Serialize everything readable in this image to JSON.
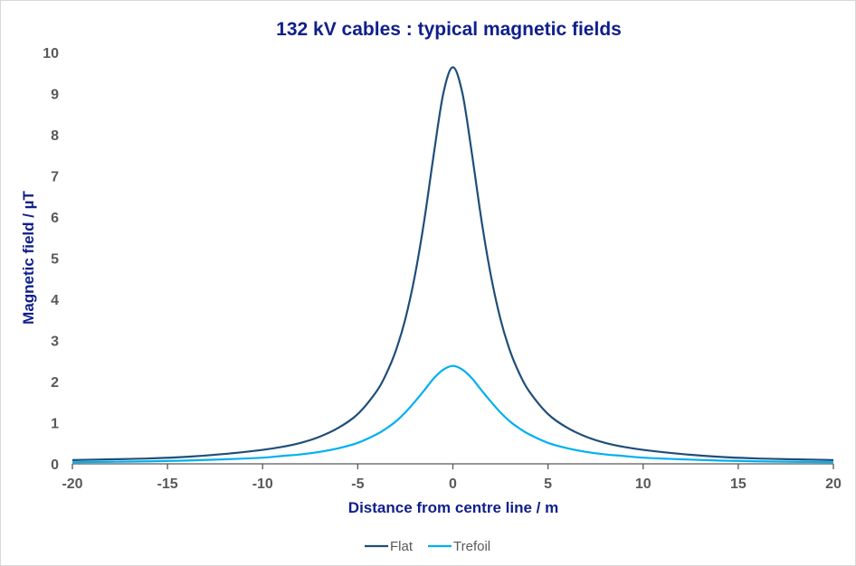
{
  "chart_data": {
    "type": "line",
    "title": "132 kV cables : typical magnetic fields",
    "xlabel": "Distance from centre line / m",
    "ylabel": "Magnetic field / µT",
    "xlim": [
      -20,
      20
    ],
    "ylim": [
      0,
      10
    ],
    "xticks": [
      -20,
      -15,
      -10,
      -5,
      0,
      5,
      10,
      15,
      20
    ],
    "yticks": [
      0,
      1,
      2,
      3,
      4,
      5,
      6,
      7,
      8,
      9,
      10
    ],
    "grid": false,
    "legend": "bottom",
    "x": [
      -20,
      -18,
      -16,
      -14,
      -12,
      -10,
      -9,
      -8,
      -7,
      -6,
      -5,
      -4,
      -3.5,
      -3,
      -2.5,
      -2,
      -1.5,
      -1,
      -0.5,
      0,
      0.5,
      1,
      1.5,
      2,
      2.5,
      3,
      3.5,
      4,
      5,
      6,
      7,
      8,
      9,
      10,
      12,
      14,
      16,
      18,
      20
    ],
    "series": [
      {
        "name": "Flat",
        "color": "#1f4e79",
        "values": [
          0.09,
          0.11,
          0.13,
          0.17,
          0.24,
          0.34,
          0.41,
          0.51,
          0.66,
          0.88,
          1.21,
          1.77,
          2.19,
          2.75,
          3.52,
          4.57,
          5.93,
          7.54,
          9.01,
          9.64,
          9.01,
          7.54,
          5.93,
          4.57,
          3.52,
          2.75,
          2.19,
          1.77,
          1.21,
          0.88,
          0.66,
          0.51,
          0.41,
          0.34,
          0.24,
          0.17,
          0.13,
          0.11,
          0.09
        ]
      },
      {
        "name": "Trefoil",
        "color": "#00b0f0",
        "values": [
          0.04,
          0.05,
          0.06,
          0.08,
          0.11,
          0.15,
          0.19,
          0.23,
          0.29,
          0.38,
          0.51,
          0.72,
          0.86,
          1.03,
          1.25,
          1.51,
          1.79,
          2.08,
          2.29,
          2.38,
          2.29,
          2.08,
          1.79,
          1.51,
          1.25,
          1.03,
          0.86,
          0.72,
          0.51,
          0.38,
          0.29,
          0.23,
          0.19,
          0.15,
          0.11,
          0.08,
          0.06,
          0.05,
          0.04
        ]
      }
    ],
    "colors": {
      "title": "#0f1f8a",
      "axis_title": "#0f1f8a",
      "ticks": "#595959",
      "axis": "#595959"
    }
  }
}
